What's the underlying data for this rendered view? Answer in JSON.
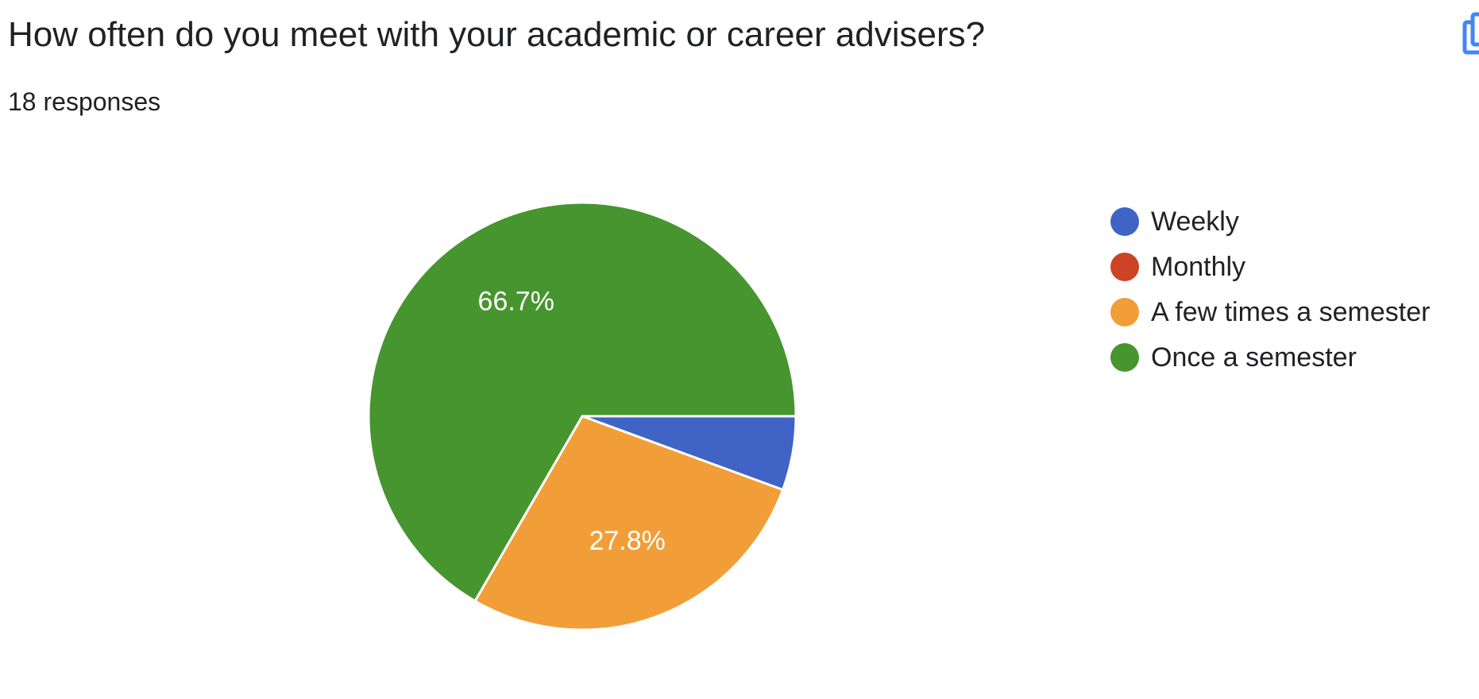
{
  "question": {
    "title": "How often do you meet with your academic or career advisers?",
    "responses": "18 responses"
  },
  "toolbar": {
    "copy_icon": "copy-chart-icon",
    "copy_color": "#4285f4"
  },
  "chart_data": {
    "type": "pie",
    "title": "",
    "start": "3 o'clock, clockwise",
    "categories": [
      "Weekly",
      "Monthly",
      "A few times a semester",
      "Once a semester"
    ],
    "values": [
      5.6,
      0,
      27.8,
      66.7
    ],
    "counts": [
      1,
      0,
      5,
      12
    ],
    "colors": [
      "#3f64c6",
      "#cc4326",
      "#f19e38",
      "#46952f"
    ],
    "data_labels": [
      "",
      "",
      "27.8%",
      "66.7%"
    ],
    "legend_position": "right"
  }
}
